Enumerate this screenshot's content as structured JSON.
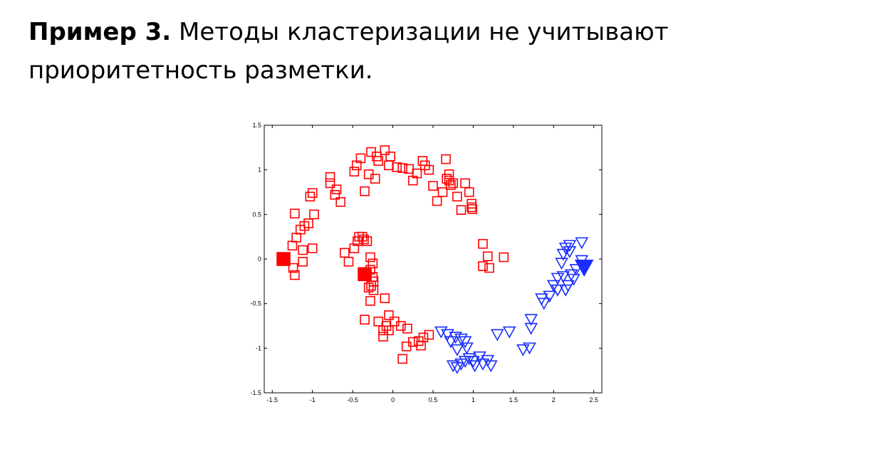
{
  "slide": {
    "heading_bold": "Пример 3.",
    "heading_rest": " Методы кластеризации не учитывают",
    "heading_line2": "приоритетность разметки."
  },
  "colors": {
    "red": "#ff0000",
    "blue": "#1a2fff"
  },
  "chart_data": {
    "type": "scatter",
    "xlim": [
      -1.6,
      2.6
    ],
    "ylim": [
      -1.5,
      1.5
    ],
    "xticks": [
      -1.5,
      -1,
      -0.5,
      0,
      0.5,
      1,
      1.5,
      2,
      2.5
    ],
    "xtick_labels": [
      "-1.5",
      "-1",
      "-0.5",
      "0",
      "0.5",
      "1",
      "1.5",
      "2",
      "2.5"
    ],
    "yticks": [
      -1.5,
      -1,
      -0.5,
      0,
      0.5,
      1,
      1.5
    ],
    "ytick_labels": [
      "-1.5",
      "-1",
      "-0.5",
      "0",
      "0.5",
      "1",
      "1.5"
    ],
    "grid": false,
    "series": [
      {
        "marker": "square",
        "color": "#ff0000",
        "points": [
          [
            -1.22,
            0.51
          ],
          [
            -1.15,
            0.33
          ],
          [
            -1.2,
            0.24
          ],
          [
            -1.1,
            0.37
          ],
          [
            -1.05,
            0.4
          ],
          [
            -0.98,
            0.5
          ],
          [
            -1.25,
            0.15
          ],
          [
            -1.12,
            0.1
          ],
          [
            -1.0,
            0.12
          ],
          [
            -1.24,
            -0.1
          ],
          [
            -1.22,
            -0.18
          ],
          [
            -1.12,
            -0.03
          ],
          [
            -1.03,
            0.7
          ],
          [
            -1.0,
            0.74
          ],
          [
            -0.78,
            0.92
          ],
          [
            -0.78,
            0.85
          ],
          [
            -0.72,
            0.72
          ],
          [
            -0.7,
            0.78
          ],
          [
            -0.65,
            0.64
          ],
          [
            -0.48,
            0.98
          ],
          [
            -0.45,
            1.05
          ],
          [
            -0.4,
            1.13
          ],
          [
            -0.35,
            0.76
          ],
          [
            -0.3,
            0.95
          ],
          [
            -0.27,
            1.2
          ],
          [
            -0.22,
            0.9
          ],
          [
            -0.2,
            1.15
          ],
          [
            -0.18,
            1.1
          ],
          [
            -0.1,
            1.22
          ],
          [
            -0.05,
            1.05
          ],
          [
            -0.03,
            1.15
          ],
          [
            0.05,
            1.03
          ],
          [
            0.12,
            1.02
          ],
          [
            0.2,
            1.01
          ],
          [
            0.25,
            0.88
          ],
          [
            0.3,
            0.96
          ],
          [
            0.37,
            1.1
          ],
          [
            0.4,
            1.05
          ],
          [
            0.45,
            1.0
          ],
          [
            0.5,
            0.82
          ],
          [
            0.55,
            0.65
          ],
          [
            0.62,
            0.75
          ],
          [
            0.66,
            1.12
          ],
          [
            0.7,
            0.88
          ],
          [
            0.75,
            0.85
          ],
          [
            0.72,
            0.83
          ],
          [
            0.67,
            0.9
          ],
          [
            0.7,
            0.95
          ],
          [
            0.8,
            0.7
          ],
          [
            0.85,
            0.55
          ],
          [
            0.9,
            0.85
          ],
          [
            0.95,
            0.75
          ],
          [
            0.98,
            0.62
          ],
          [
            0.99,
            0.56
          ],
          [
            0.98,
            0.58
          ],
          [
            -0.6,
            0.07
          ],
          [
            -0.55,
            -0.03
          ],
          [
            -0.48,
            0.12
          ],
          [
            -0.44,
            0.2
          ],
          [
            -0.42,
            0.25
          ],
          [
            -0.38,
            0.25
          ],
          [
            -0.36,
            0.22
          ],
          [
            -0.32,
            0.2
          ],
          [
            -0.28,
            0.02
          ],
          [
            -0.25,
            -0.05
          ],
          [
            -0.28,
            -0.12
          ],
          [
            -0.25,
            -0.2
          ],
          [
            -0.27,
            -0.3
          ],
          [
            -0.3,
            -0.32
          ],
          [
            -0.24,
            -0.25
          ],
          [
            -0.24,
            -0.35
          ],
          [
            -0.28,
            -0.47
          ],
          [
            -0.35,
            -0.68
          ],
          [
            -0.18,
            -0.7
          ],
          [
            -0.1,
            -0.44
          ],
          [
            -0.05,
            -0.63
          ],
          [
            -0.08,
            -0.75
          ],
          [
            -0.05,
            -0.8
          ],
          [
            -0.12,
            -0.8
          ],
          [
            -0.12,
            -0.87
          ],
          [
            0.02,
            -0.7
          ],
          [
            0.1,
            -0.75
          ],
          [
            0.18,
            -0.78
          ],
          [
            0.17,
            -0.98
          ],
          [
            0.25,
            -0.93
          ],
          [
            0.32,
            -0.92
          ],
          [
            0.35,
            -0.97
          ],
          [
            0.38,
            -0.88
          ],
          [
            0.45,
            -0.85
          ],
          [
            0.12,
            -1.12
          ],
          [
            1.12,
            0.17
          ],
          [
            1.18,
            0.03
          ],
          [
            1.12,
            -0.08
          ],
          [
            1.2,
            -0.1
          ],
          [
            1.38,
            0.02
          ]
        ]
      },
      {
        "marker": "triangle-down",
        "color": "#1a2fff",
        "points": [
          [
            0.6,
            -0.82
          ],
          [
            0.68,
            -0.85
          ],
          [
            0.72,
            -0.93
          ],
          [
            0.78,
            -0.88
          ],
          [
            0.8,
            -1.02
          ],
          [
            0.85,
            -0.9
          ],
          [
            0.9,
            -0.93
          ],
          [
            0.92,
            -1.0
          ],
          [
            0.75,
            -1.2
          ],
          [
            0.8,
            -1.22
          ],
          [
            0.85,
            -1.18
          ],
          [
            0.9,
            -1.15
          ],
          [
            0.95,
            -1.12
          ],
          [
            1.0,
            -1.15
          ],
          [
            1.02,
            -1.2
          ],
          [
            1.08,
            -1.1
          ],
          [
            1.12,
            -1.18
          ],
          [
            1.18,
            -1.14
          ],
          [
            1.22,
            -1.2
          ],
          [
            1.3,
            -0.85
          ],
          [
            1.45,
            -0.82
          ],
          [
            1.62,
            -1.02
          ],
          [
            1.7,
            -1.0
          ],
          [
            1.72,
            -0.68
          ],
          [
            1.72,
            -0.78
          ],
          [
            1.88,
            -0.5
          ],
          [
            1.85,
            -0.45
          ],
          [
            1.95,
            -0.42
          ],
          [
            2.0,
            -0.3
          ],
          [
            2.05,
            -0.35
          ],
          [
            2.05,
            -0.22
          ],
          [
            2.12,
            -0.2
          ],
          [
            2.15,
            -0.35
          ],
          [
            2.18,
            -0.3
          ],
          [
            2.22,
            -0.18
          ],
          [
            2.25,
            -0.23
          ],
          [
            2.1,
            -0.05
          ],
          [
            2.12,
            0.05
          ],
          [
            2.15,
            0.12
          ],
          [
            2.2,
            0.08
          ],
          [
            2.2,
            0.15
          ],
          [
            2.35,
            0.18
          ],
          [
            2.28,
            -0.12
          ],
          [
            2.4,
            -0.08
          ],
          [
            2.35,
            -0.02
          ]
        ]
      }
    ],
    "labeled_points": [
      {
        "marker": "square-filled",
        "color": "#ff0000",
        "x": -1.36,
        "y": 0.0
      },
      {
        "marker": "square-filled",
        "color": "#ff0000",
        "x": -0.35,
        "y": -0.17
      },
      {
        "marker": "triangle-down-filled",
        "color": "#1a2fff",
        "x": 2.38,
        "y": -0.1
      }
    ]
  }
}
